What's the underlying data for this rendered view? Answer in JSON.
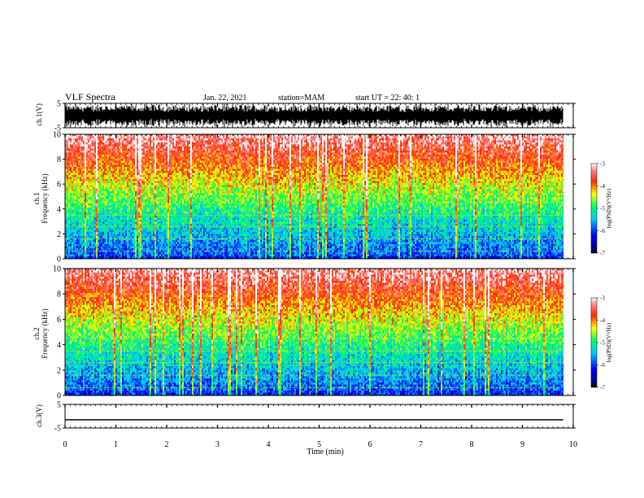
{
  "header": {
    "title": "VLF Spectra",
    "date": "Jan. 22, 2021",
    "station": "station=MAM",
    "start": "start UT =  22: 40: 1"
  },
  "chart_data": [
    {
      "type": "line",
      "panel": "ch1-waveform",
      "ylabel": "ch.1(V)",
      "ylim": [
        -5,
        5
      ],
      "yticks": [
        "5",
        "-5"
      ],
      "xlim": [
        0,
        10
      ],
      "note": "dense oscillating waveform spanning approx -5 to 5 V over 0-9.8 min"
    },
    {
      "type": "heatmap",
      "panel": "ch1-spectrogram",
      "ylabel": "ch.1\nFrequency (kHz)",
      "ylim": [
        0,
        10
      ],
      "yticks": [
        "0",
        "2",
        "4",
        "6",
        "8",
        "10"
      ],
      "xlim": [
        0,
        10
      ],
      "data_end_min": 9.8,
      "colorbar": {
        "label": "log(PSD)(V²/Hz)",
        "range": [
          -7,
          -3
        ],
        "ticks": [
          "-3",
          "-4",
          "-5",
          "-6",
          "-7"
        ]
      }
    },
    {
      "type": "heatmap",
      "panel": "ch2-spectrogram",
      "ylabel": "ch.2\nFrequency (kHz)",
      "ylim": [
        0,
        10
      ],
      "yticks": [
        "0",
        "2",
        "4",
        "6",
        "8",
        "10"
      ],
      "xlim": [
        0,
        10
      ],
      "data_end_min": 9.8,
      "colorbar": {
        "label": "log(PSD)(V²/Hz)",
        "range": [
          -7,
          -3
        ],
        "ticks": [
          "-3",
          "-4",
          "-5",
          "-6",
          "-7"
        ]
      }
    },
    {
      "type": "line",
      "panel": "ch3-waveform",
      "ylabel": "ch.3(V)",
      "ylim": [
        -5,
        5
      ],
      "yticks": [
        "5",
        "-5"
      ],
      "xlim": [
        0,
        10
      ],
      "x": [
        0,
        9.8
      ],
      "y": [
        -1.5,
        -1.5
      ],
      "xlabel": "Time (min)",
      "xticks": [
        "0",
        "1",
        "2",
        "3",
        "4",
        "5",
        "6",
        "7",
        "8",
        "9",
        "10"
      ]
    }
  ]
}
